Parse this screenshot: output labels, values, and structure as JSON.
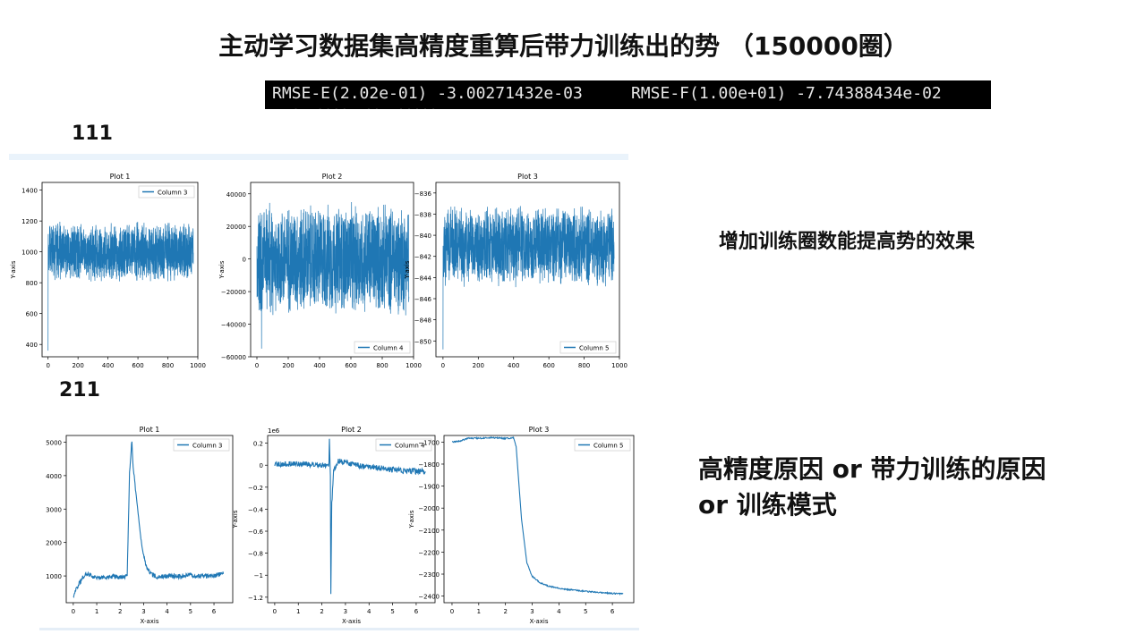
{
  "slide": {
    "title": "主动学习数据集高精度重算后带力训练出的势 （150000圈）",
    "terminal": {
      "ghost_top": "    ·····  ··    ·······  ·",
      "line": "RMSE-E(2.02e-01) -3.00271432e-03     RMSE-F(1.00e+01) -7.74388434e-02",
      "ghost_bottom": "  ·  ····  ··  ·····"
    },
    "label_111": "111",
    "label_211": "211",
    "note_1": "增加训练圈数能提高势的效果",
    "note_2_line1": "高精度原因 or  带力训练的原因",
    "note_2_line2": "or  训练模式"
  },
  "chart_data": [
    {
      "id": "row111-plot1",
      "type": "line",
      "title": "Plot 1",
      "xlabel": "X-axis",
      "ylabel": "Y-axis",
      "legend": "Column 3",
      "legend_position": "top-right",
      "xlim": [
        -40,
        1000
      ],
      "ylim": [
        320,
        1450
      ],
      "xticks": [
        0,
        200,
        400,
        600,
        800,
        1000
      ],
      "yticks": [
        400,
        600,
        800,
        1000,
        1200,
        1400
      ],
      "series": [
        {
          "name": "Column 3",
          "pattern": "noise",
          "x_start": 0,
          "x_end": 970,
          "center": 1000,
          "amplitude": 200,
          "spikes": [
            [
              0,
              360
            ]
          ]
        }
      ]
    },
    {
      "id": "row111-plot2",
      "type": "line",
      "title": "Plot 2",
      "xlabel": "X-axis",
      "ylabel": "Y-axis",
      "legend": "Column 4",
      "legend_position": "lower-right",
      "xlim": [
        -40,
        1000
      ],
      "ylim": [
        -60000,
        47000
      ],
      "xticks": [
        0,
        200,
        400,
        600,
        800,
        1000
      ],
      "yticks": [
        -60000,
        -40000,
        -20000,
        0,
        20000,
        40000
      ],
      "series": [
        {
          "name": "Column 4",
          "pattern": "noise",
          "x_start": 0,
          "x_end": 970,
          "center": 0,
          "amplitude": 36000,
          "spikes": [
            [
              30,
              -55000
            ]
          ]
        }
      ]
    },
    {
      "id": "row111-plot3",
      "type": "line",
      "title": "Plot 3",
      "xlabel": "X-axis",
      "ylabel": "Y-axis",
      "legend": "Column 5",
      "legend_position": "lower-right",
      "xlim": [
        -40,
        1000
      ],
      "ylim": [
        -851.5,
        -835
      ],
      "xticks": [
        0,
        200,
        400,
        600,
        800,
        1000
      ],
      "yticks": [
        -850,
        -848,
        -846,
        -844,
        -842,
        -840,
        -838,
        -836
      ],
      "series": [
        {
          "name": "Column 5",
          "pattern": "noise",
          "x_start": 0,
          "x_end": 970,
          "center": -841,
          "amplitude": 4,
          "spikes": [
            [
              0,
              -850.8
            ]
          ]
        }
      ]
    },
    {
      "id": "row211-plot1",
      "type": "line",
      "title": "Plot 1",
      "xlabel": "X-axis",
      "ylabel": "Y-axis",
      "legend": "Column 3",
      "legend_position": "top-right",
      "xlim": [
        -0.3,
        6.8
      ],
      "ylim": [
        200,
        5200
      ],
      "xticks": [
        0,
        1,
        2,
        3,
        4,
        5,
        6
      ],
      "yticks": [
        1000,
        2000,
        3000,
        4000,
        5000
      ],
      "series": [
        {
          "name": "Column 3",
          "points": [
            [
              0,
              400
            ],
            [
              0.2,
              700
            ],
            [
              0.4,
              950
            ],
            [
              0.6,
              1080
            ],
            [
              0.8,
              1000
            ],
            [
              1.0,
              940
            ],
            [
              1.5,
              990
            ],
            [
              2.0,
              960
            ],
            [
              2.3,
              1000
            ],
            [
              2.4,
              4100
            ],
            [
              2.5,
              5080
            ],
            [
              2.55,
              4300
            ],
            [
              2.7,
              3300
            ],
            [
              2.9,
              2000
            ],
            [
              3.1,
              1300
            ],
            [
              3.3,
              1050
            ],
            [
              3.6,
              980
            ],
            [
              4.0,
              1000
            ],
            [
              4.5,
              990
            ],
            [
              5.0,
              1020
            ],
            [
              5.5,
              990
            ],
            [
              6.0,
              1010
            ],
            [
              6.4,
              1060
            ]
          ],
          "noise": 70
        }
      ]
    },
    {
      "id": "row211-plot2",
      "type": "line",
      "title": "Plot 2",
      "xlabel": "X-axis",
      "ylabel": "Y-axis",
      "legend": "Column 4",
      "legend_position": "top-right",
      "multiplier": "1e6",
      "xlim": [
        -0.3,
        6.8
      ],
      "ylim": [
        -1.25,
        0.27
      ],
      "xticks": [
        0,
        1,
        2,
        3,
        4,
        5,
        6
      ],
      "yticks": [
        -1.2,
        -1.0,
        -0.8,
        -0.6,
        -0.4,
        -0.2,
        0.0,
        0.2
      ],
      "series": [
        {
          "name": "Column 4",
          "points": [
            [
              0,
              0.01
            ],
            [
              1.0,
              0.015
            ],
            [
              2.0,
              0.0
            ],
            [
              2.3,
              0.0
            ],
            [
              2.32,
              0.24
            ],
            [
              2.36,
              -0.1
            ],
            [
              2.38,
              -1.17
            ],
            [
              2.42,
              -0.35
            ],
            [
              2.5,
              -0.05
            ],
            [
              2.7,
              0.04
            ],
            [
              3.5,
              0.0
            ],
            [
              4.5,
              -0.03
            ],
            [
              5.5,
              -0.05
            ],
            [
              6.4,
              -0.06
            ]
          ],
          "noise": 0.025
        }
      ]
    },
    {
      "id": "row211-plot3",
      "type": "line",
      "title": "Plot 3",
      "xlabel": "X-axis",
      "ylabel": "Y-axis",
      "legend": "Column 5",
      "legend_position": "top-right",
      "xlim": [
        -0.3,
        6.8
      ],
      "ylim": [
        -2430,
        -1670
      ],
      "xticks": [
        0,
        1,
        2,
        3,
        4,
        5,
        6
      ],
      "yticks": [
        -2400,
        -2300,
        -2200,
        -2100,
        -2000,
        -1900,
        -1800,
        -1700
      ],
      "series": [
        {
          "name": "Column 5",
          "points": [
            [
              0,
              -1700
            ],
            [
              0.3,
              -1695
            ],
            [
              0.6,
              -1682
            ],
            [
              1.0,
              -1683
            ],
            [
              1.5,
              -1680
            ],
            [
              2.0,
              -1683
            ],
            [
              2.3,
              -1681
            ],
            [
              2.4,
              -1720
            ],
            [
              2.6,
              -2050
            ],
            [
              2.8,
              -2250
            ],
            [
              3.0,
              -2310
            ],
            [
              3.3,
              -2340
            ],
            [
              3.6,
              -2355
            ],
            [
              4.0,
              -2365
            ],
            [
              4.5,
              -2372
            ],
            [
              5.0,
              -2378
            ],
            [
              5.5,
              -2383
            ],
            [
              6.0,
              -2388
            ],
            [
              6.4,
              -2390
            ]
          ],
          "noise": 3
        }
      ]
    }
  ],
  "colors": {
    "line": "#1f77b4",
    "axis": "#000000",
    "terminal_bg": "#000000",
    "terminal_text": "#e6e6e6",
    "panel_top_border": "#eaf3fb"
  }
}
